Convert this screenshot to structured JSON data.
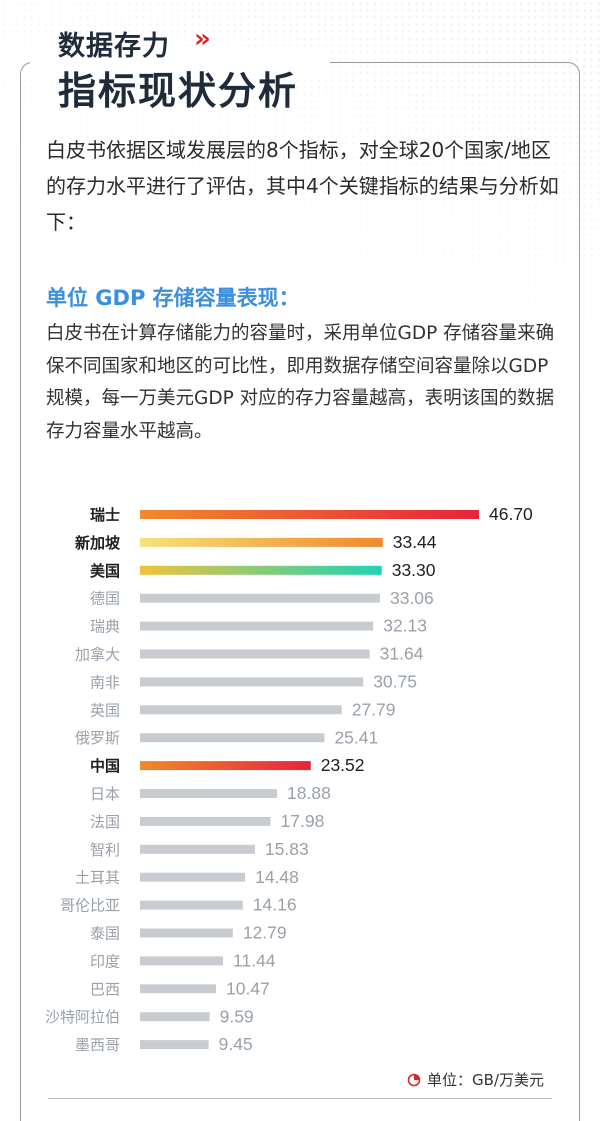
{
  "header": {
    "title_small": "数据存力",
    "chevron": "»",
    "title_big": "指标现状分析"
  },
  "intro": "白皮书依据区域发展层的8个指标，对全球20个国家/地区的存力水平进行了评估，其中4个关键指标的结果与分析如下：",
  "section": {
    "title": "单位 GDP 存储容量表现：",
    "desc": "白皮书在计算存储能力的容量时，采用单位GDP 存储容量来确保不同国家和地区的可比性，即用数据存储空间容量除以GDP 规模，每一万美元GDP 对应的存力容量越高，表明该国的数据存力容量水平越高。"
  },
  "unit_label": "单位：GB/万美元",
  "colors": {
    "title": "#1f2a3a",
    "accent_red": "#d12a2a",
    "subtitle_blue": "#3b8fdd",
    "bar_gray": "#c8ccd1",
    "label_gray": "#9aa1a9"
  },
  "chart_data": {
    "type": "bar",
    "orientation": "horizontal",
    "categories": [
      "瑞士",
      "新加坡",
      "美国",
      "德国",
      "瑞典",
      "加拿大",
      "南非",
      "英国",
      "俄罗斯",
      "中国",
      "日本",
      "法国",
      "智利",
      "土耳其",
      "哥伦比亚",
      "泰国",
      "印度",
      "巴西",
      "沙特阿拉伯",
      "墨西哥"
    ],
    "values": [
      46.7,
      33.44,
      33.3,
      33.06,
      32.13,
      31.64,
      30.75,
      27.79,
      25.41,
      23.52,
      18.88,
      17.98,
      15.83,
      14.48,
      14.16,
      12.79,
      11.44,
      10.47,
      9.59,
      9.45
    ],
    "value_labels": [
      "46.70",
      "33.44",
      "33.30",
      "33.06",
      "32.13",
      "31.64",
      "30.75",
      "27.79",
      "25.41",
      "23.52",
      "18.88",
      "17.98",
      "15.83",
      "14.48",
      "14.16",
      "12.79",
      "11.44",
      "10.47",
      "9.59",
      "9.45"
    ],
    "highlighted": [
      "瑞士",
      "新加坡",
      "美国",
      "中国"
    ],
    "highlight_gradients": {
      "瑞士": [
        "#f08a2c",
        "#e6243b"
      ],
      "新加坡": [
        "#f5e27a",
        "#f0892c"
      ],
      "美国": [
        "#f2c23a",
        "#1fd3b5"
      ],
      "中国": [
        "#f0892c",
        "#e6243b"
      ]
    },
    "xlim": [
      0,
      46.7
    ]
  }
}
